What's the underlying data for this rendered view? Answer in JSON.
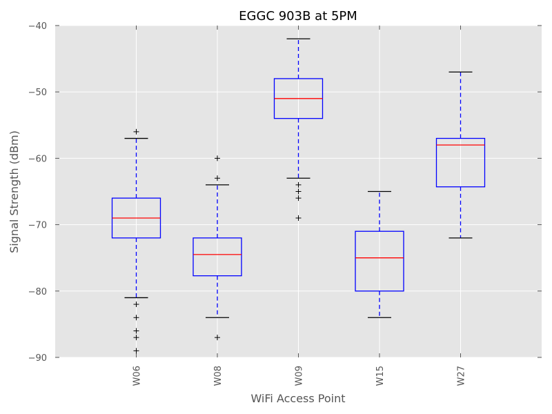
{
  "chart_data": {
    "type": "box",
    "title": "EGGC 903B at 5PM",
    "xlabel": "WiFi Access Point",
    "ylabel": "Signal Strength (dBm)",
    "ylim": [
      -90,
      -40
    ],
    "yticks": [
      -40,
      -50,
      -60,
      -70,
      -80,
      -90
    ],
    "ytick_labels": [
      "−40",
      "−50",
      "−60",
      "−70",
      "−80",
      "−90"
    ],
    "grid": true,
    "categories": [
      "W06",
      "W08",
      "W09",
      "W15",
      "W27"
    ],
    "boxes": [
      {
        "category": "W06",
        "whisker_low": -81,
        "q1": -72,
        "median": -69,
        "q3": -66,
        "whisker_high": -57,
        "outliers": [
          -56,
          -82,
          -84,
          -86,
          -87,
          -89
        ]
      },
      {
        "category": "W08",
        "whisker_low": -84,
        "q1": -77.7,
        "median": -74.5,
        "q3": -72,
        "whisker_high": -64,
        "outliers": [
          -60,
          -63,
          -87
        ]
      },
      {
        "category": "W09",
        "whisker_low": -63,
        "q1": -54,
        "median": -51,
        "q3": -48,
        "whisker_high": -42,
        "outliers": [
          -64,
          -65,
          -66,
          -69
        ]
      },
      {
        "category": "W15",
        "whisker_low": -84,
        "q1": -80,
        "median": -75,
        "q3": -71,
        "whisker_high": -65,
        "outliers": []
      },
      {
        "category": "W27",
        "whisker_low": -72,
        "q1": -64.3,
        "median": -58,
        "q3": -57,
        "whisker_high": -47,
        "outliers": []
      }
    ],
    "colors": {
      "box": "#0000ff",
      "median": "#ff0000",
      "whisker": "#0000ff",
      "cap": "#000000",
      "flier": "#000000",
      "plot_background": "#e5e5e5",
      "grid": "#ffffff"
    }
  }
}
